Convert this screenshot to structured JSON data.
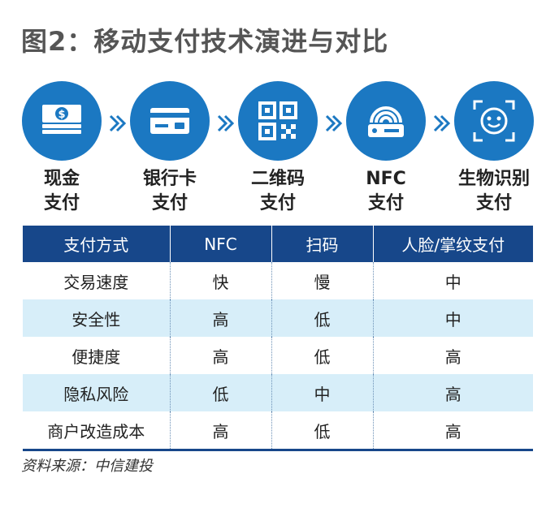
{
  "title": "图2：移动支付技术演进与对比",
  "colors": {
    "accent": "#1b78c2",
    "header": "#17478a",
    "row_alt": "#d7eef9"
  },
  "steps": [
    {
      "icon": "cash-icon",
      "line1": "现金",
      "line2": "支付"
    },
    {
      "icon": "bank-card-icon",
      "line1": "银行卡",
      "line2": "支付"
    },
    {
      "icon": "qr-code-icon",
      "line1": "二维码",
      "line2": "支付"
    },
    {
      "icon": "nfc-icon",
      "line1": "NFC",
      "line2": "支付"
    },
    {
      "icon": "face-scan-icon",
      "line1": "生物识别",
      "line2": "支付"
    }
  ],
  "table": {
    "headers": [
      "支付方式",
      "NFC",
      "扫码",
      "人脸/掌纹支付"
    ],
    "rows": [
      [
        "交易速度",
        "快",
        "慢",
        "中"
      ],
      [
        "安全性",
        "高",
        "低",
        "中"
      ],
      [
        "便捷度",
        "高",
        "低",
        "高"
      ],
      [
        "隐私风险",
        "低",
        "中",
        "高"
      ],
      [
        "商户改造成本",
        "高",
        "低",
        "高"
      ]
    ]
  },
  "source": "资料来源：中信建投"
}
